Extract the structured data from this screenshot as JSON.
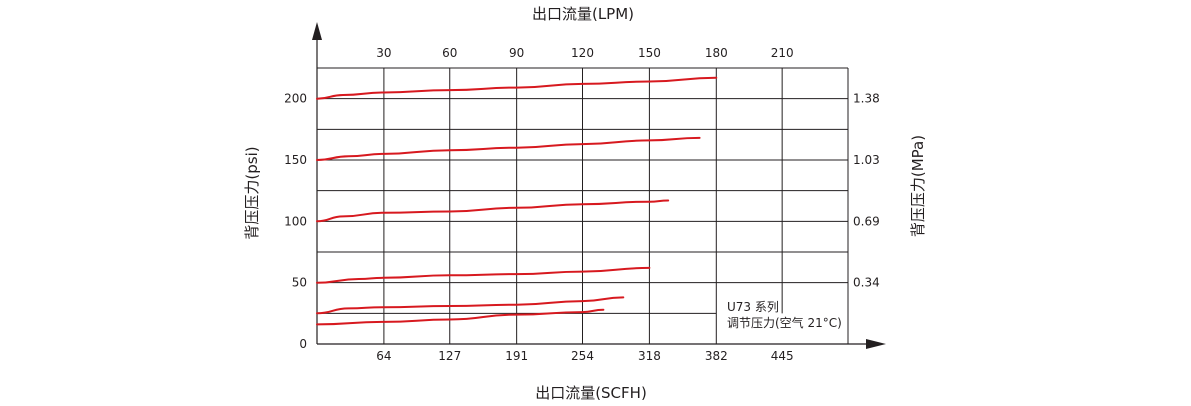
{
  "chart_data": {
    "type": "line",
    "title": "",
    "top_axis_title": "出口流量(LPM)",
    "bottom_axis_title": "出口流量(SCFH)",
    "left_axis_title": "背压压力(psi)",
    "right_axis_title": "背压压力(MPa)",
    "top_ticks": [
      "30",
      "60",
      "90",
      "120",
      "150",
      "180",
      "210"
    ],
    "bottom_ticks": [
      "64",
      "127",
      "191",
      "254",
      "318",
      "382",
      "445"
    ],
    "left_ticks": [
      "0",
      "50",
      "100",
      "150",
      "200"
    ],
    "right_ticks": [
      "0.34",
      "0.69",
      "1.03",
      "1.38"
    ],
    "note_line1": "U73 系列",
    "note_line2": "调节压力(空气 21°C)",
    "x_unit": "SCFH",
    "y_unit": "psi",
    "xlim": [
      0,
      508
    ],
    "ylim": [
      0,
      225
    ],
    "line_color": "#d7191f",
    "series": [
      {
        "x": [
          0,
          25,
          64,
          127,
          191,
          254,
          318,
          382
        ],
        "y": [
          200,
          203,
          205,
          207,
          209,
          212,
          214,
          217
        ]
      },
      {
        "x": [
          0,
          30,
          64,
          127,
          191,
          254,
          318,
          366
        ],
        "y": [
          150,
          153,
          155,
          158,
          160,
          163,
          166,
          168
        ]
      },
      {
        "x": [
          0,
          25,
          64,
          127,
          191,
          254,
          318,
          336
        ],
        "y": [
          100,
          104,
          107,
          108,
          111,
          114,
          116,
          117
        ]
      },
      {
        "x": [
          0,
          40,
          64,
          127,
          191,
          254,
          318
        ],
        "y": [
          50,
          53,
          54,
          56,
          57,
          59,
          62
        ]
      },
      {
        "x": [
          0,
          30,
          64,
          127,
          191,
          254,
          293
        ],
        "y": [
          25,
          29,
          30,
          31,
          32,
          35,
          38
        ]
      },
      {
        "x": [
          0,
          64,
          127,
          191,
          254,
          274
        ],
        "y": [
          16,
          18,
          20,
          24,
          26,
          28
        ]
      }
    ]
  }
}
